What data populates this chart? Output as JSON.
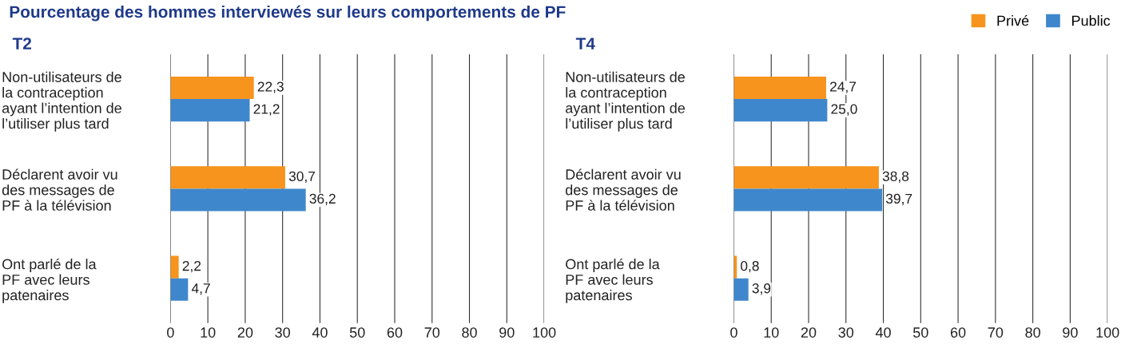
{
  "chart_data": [
    {
      "type": "bar",
      "orientation": "horizontal",
      "title": "Pourcentage des hommes interviewés sur leurs comportements de PF",
      "subtitle": "T2",
      "legend": "top right",
      "categories": [
        "Non-utilisateurs de\nla contraception\nayant l’intention de\nl’utiliser plus tard",
        "Déclarent avoir vu\ndes messages de\nPF à la télévision",
        "Ont parlé de la\nPF avec leurs\npatenaires"
      ],
      "series": [
        {
          "name": "Privé",
          "color": "#f7941e",
          "values": [
            22.3,
            30.7,
            2.2
          ],
          "value_labels": [
            "22,3",
            "30,7",
            "2,2"
          ]
        },
        {
          "name": "Public",
          "color": "#3f87cc",
          "values": [
            21.2,
            36.2,
            4.7
          ],
          "value_labels": [
            "21,2",
            "36,2",
            "4,7"
          ]
        }
      ],
      "xlim": [
        0,
        100
      ],
      "xticks": [
        0,
        10,
        20,
        30,
        40,
        50,
        60,
        70,
        80,
        90,
        100
      ],
      "grid": "x"
    },
    {
      "type": "bar",
      "orientation": "horizontal",
      "title": "T4",
      "categories": [
        "Non-utilisateurs de\nla contraception\nayant l’intention de\nl’utiliser plus tard",
        "Déclarent avoir vu\ndes messages de\nPF à la télévision",
        "Ont parlé de la\nPF avec leurs\npatenaires"
      ],
      "series": [
        {
          "color": "#f7941e",
          "values": [
            24.7,
            38.8,
            0.8
          ],
          "value_labels": [
            "24,7",
            "38,8",
            "0,8"
          ]
        },
        {
          "color": "#3f87cc",
          "values": [
            25.0,
            39.7,
            3.9
          ],
          "value_labels": [
            "25,0",
            "39,7",
            "3,9"
          ]
        }
      ],
      "xlim": [
        0,
        100
      ],
      "xticks": [
        0,
        10,
        20,
        30,
        40,
        50,
        60,
        70,
        80,
        90,
        100
      ],
      "grid": "x"
    }
  ]
}
